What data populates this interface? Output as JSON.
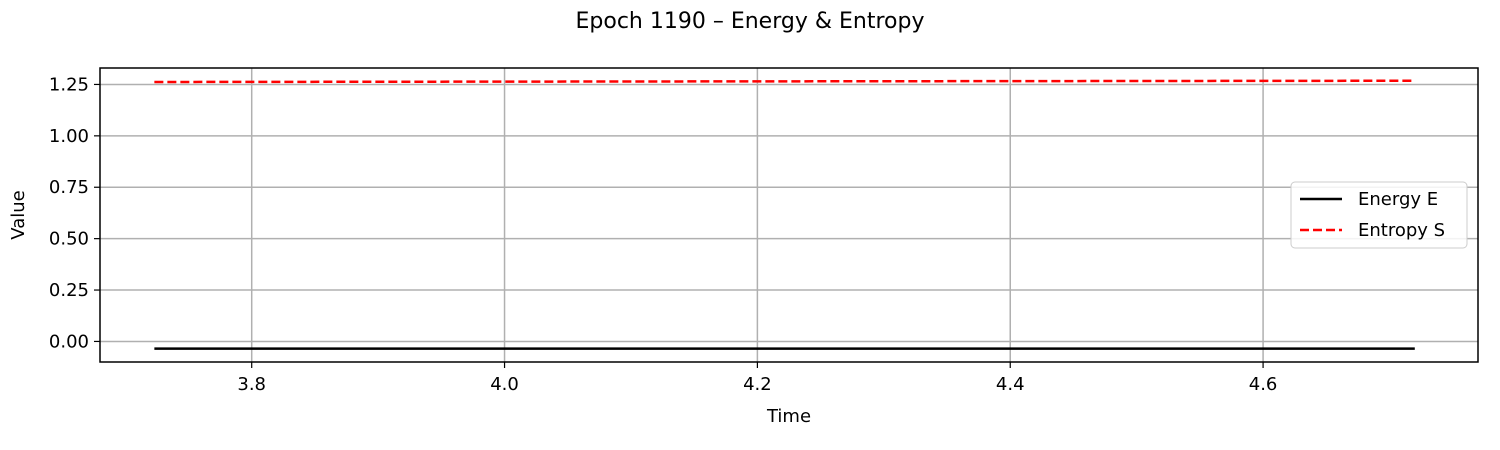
{
  "chart_data": {
    "type": "line",
    "title": "Epoch 1190 – Energy & Entropy",
    "xlabel": "Time",
    "ylabel": "Value",
    "xlim": [
      3.68,
      4.77
    ],
    "ylim": [
      -0.1,
      1.33
    ],
    "xticks": [
      "3.8",
      "4.0",
      "4.2",
      "4.4",
      "4.6"
    ],
    "yticks": [
      "0.00",
      "0.25",
      "0.50",
      "0.75",
      "1.00",
      "1.25"
    ],
    "grid": true,
    "legend_position": "center-right",
    "series": [
      {
        "name": "Energy E",
        "color": "#000000",
        "style": "solid",
        "x": [
          3.723,
          4.2,
          4.72
        ],
        "y": [
          -0.035,
          -0.035,
          -0.035
        ]
      },
      {
        "name": "Entropy S",
        "color": "#ff0000",
        "style": "dashed",
        "x": [
          3.723,
          4.2,
          4.72
        ],
        "y": [
          1.262,
          1.265,
          1.268
        ]
      }
    ]
  }
}
